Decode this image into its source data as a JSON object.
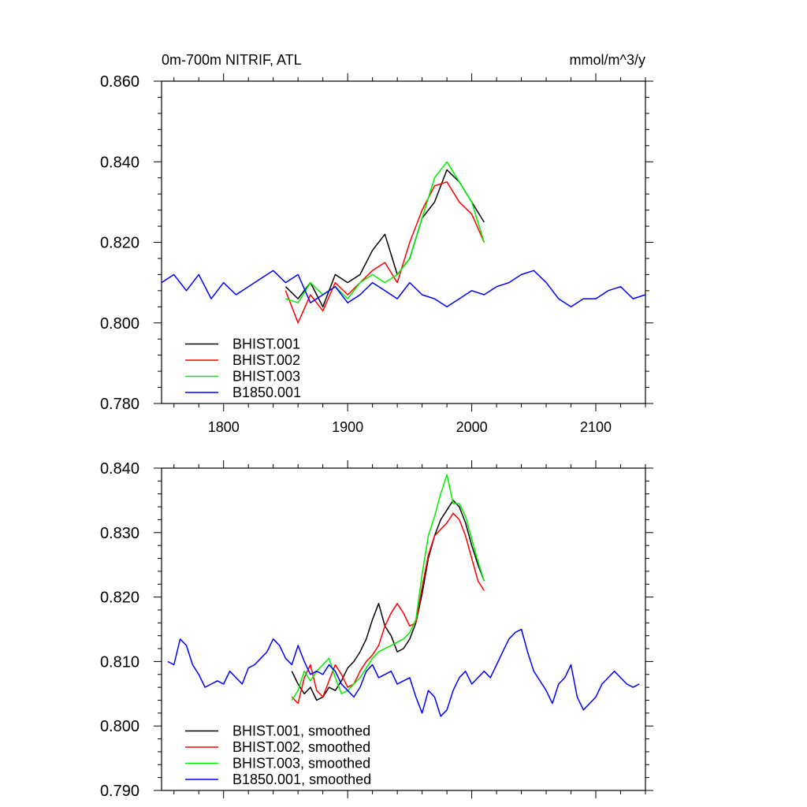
{
  "chart_data": [
    {
      "type": "line",
      "title": "0m-700m NITRIF, ATL",
      "units": "mmol/m^3/y",
      "xlim": [
        1750,
        2140
      ],
      "ylim": [
        0.78,
        0.86
      ],
      "x_ticks": [
        "1800",
        "1900",
        "2000",
        "2100"
      ],
      "y_ticks": [
        "0.780",
        "0.800",
        "0.820",
        "0.840",
        "0.860"
      ],
      "legend_position": "bottom-left",
      "series": [
        {
          "name": "BHIST.001",
          "color": "#000000",
          "x": [
            1850,
            1860,
            1870,
            1880,
            1890,
            1900,
            1910,
            1920,
            1930,
            1940,
            1950,
            1960,
            1970,
            1980,
            1990,
            2000,
            2010
          ],
          "y": [
            0.809,
            0.806,
            0.81,
            0.804,
            0.812,
            0.81,
            0.812,
            0.818,
            0.822,
            0.812,
            0.816,
            0.826,
            0.83,
            0.838,
            0.835,
            0.83,
            0.825
          ]
        },
        {
          "name": "BHIST.002",
          "color": "#ff0000",
          "x": [
            1850,
            1860,
            1870,
            1880,
            1890,
            1900,
            1910,
            1920,
            1930,
            1940,
            1950,
            1960,
            1970,
            1980,
            1990,
            2000,
            2010
          ],
          "y": [
            0.808,
            0.8,
            0.807,
            0.803,
            0.81,
            0.807,
            0.81,
            0.813,
            0.815,
            0.81,
            0.82,
            0.828,
            0.834,
            0.835,
            0.83,
            0.827,
            0.82
          ]
        },
        {
          "name": "BHIST.003",
          "color": "#00ee00",
          "x": [
            1850,
            1860,
            1870,
            1880,
            1890,
            1900,
            1910,
            1920,
            1930,
            1940,
            1950,
            1960,
            1970,
            1980,
            1990,
            2000,
            2010
          ],
          "y": [
            0.806,
            0.805,
            0.81,
            0.807,
            0.809,
            0.806,
            0.81,
            0.812,
            0.81,
            0.812,
            0.816,
            0.826,
            0.836,
            0.84,
            0.835,
            0.83,
            0.82
          ]
        },
        {
          "name": "B1850.001",
          "color": "#0000ff",
          "x": [
            1750,
            1760,
            1770,
            1780,
            1790,
            1800,
            1810,
            1820,
            1830,
            1840,
            1850,
            1860,
            1870,
            1880,
            1890,
            1900,
            1910,
            1920,
            1930,
            1940,
            1950,
            1960,
            1970,
            1980,
            1990,
            2000,
            2010,
            2020,
            2030,
            2040,
            2050,
            2060,
            2070,
            2080,
            2090,
            2100,
            2110,
            2120,
            2130,
            2140
          ],
          "y": [
            0.81,
            0.812,
            0.808,
            0.812,
            0.806,
            0.81,
            0.807,
            0.809,
            0.811,
            0.813,
            0.81,
            0.812,
            0.805,
            0.807,
            0.809,
            0.805,
            0.807,
            0.81,
            0.808,
            0.806,
            0.81,
            0.807,
            0.806,
            0.804,
            0.806,
            0.808,
            0.807,
            0.809,
            0.81,
            0.812,
            0.813,
            0.81,
            0.806,
            0.804,
            0.806,
            0.806,
            0.808,
            0.809,
            0.806,
            0.807
          ]
        }
      ]
    },
    {
      "type": "line",
      "xlim": [
        1750,
        2140
      ],
      "ylim": [
        0.79,
        0.84
      ],
      "x_ticks": [],
      "y_ticks": [
        "0.790",
        "0.800",
        "0.810",
        "0.820",
        "0.830",
        "0.840"
      ],
      "legend_position": "bottom-left",
      "series": [
        {
          "name": "BHIST.001, smoothed",
          "color": "#000000",
          "x": [
            1855,
            1860,
            1865,
            1870,
            1875,
            1880,
            1885,
            1890,
            1895,
            1900,
            1905,
            1910,
            1915,
            1920,
            1925,
            1930,
            1935,
            1940,
            1945,
            1950,
            1955,
            1960,
            1965,
            1970,
            1975,
            1980,
            1985,
            1990,
            1995,
            2000,
            2005,
            2010
          ],
          "y": [
            0.8085,
            0.8065,
            0.805,
            0.806,
            0.804,
            0.8045,
            0.806,
            0.8055,
            0.807,
            0.809,
            0.81,
            0.8115,
            0.8135,
            0.8165,
            0.819,
            0.8155,
            0.814,
            0.8115,
            0.812,
            0.8135,
            0.816,
            0.8205,
            0.826,
            0.8295,
            0.832,
            0.8335,
            0.835,
            0.834,
            0.8315,
            0.828,
            0.825,
            0.8225
          ]
        },
        {
          "name": "BHIST.002, smoothed",
          "color": "#ff0000",
          "x": [
            1855,
            1860,
            1865,
            1870,
            1875,
            1880,
            1885,
            1890,
            1895,
            1900,
            1905,
            1910,
            1915,
            1920,
            1925,
            1930,
            1935,
            1940,
            1945,
            1950,
            1955,
            1960,
            1965,
            1970,
            1975,
            1980,
            1985,
            1990,
            1995,
            2000,
            2005,
            2010
          ],
          "y": [
            0.8045,
            0.8035,
            0.8075,
            0.8095,
            0.8055,
            0.8045,
            0.807,
            0.8095,
            0.808,
            0.806,
            0.8065,
            0.8085,
            0.81,
            0.811,
            0.8125,
            0.8155,
            0.8175,
            0.819,
            0.8175,
            0.8155,
            0.816,
            0.8215,
            0.8265,
            0.8295,
            0.8305,
            0.8315,
            0.833,
            0.832,
            0.8295,
            0.826,
            0.8225,
            0.821
          ]
        },
        {
          "name": "BHIST.003, smoothed",
          "color": "#00ee00",
          "x": [
            1855,
            1860,
            1865,
            1870,
            1875,
            1880,
            1885,
            1890,
            1895,
            1900,
            1905,
            1910,
            1915,
            1920,
            1925,
            1930,
            1935,
            1940,
            1945,
            1950,
            1955,
            1960,
            1965,
            1970,
            1975,
            1980,
            1985,
            1990,
            1995,
            2000,
            2005,
            2010
          ],
          "y": [
            0.804,
            0.8055,
            0.8085,
            0.807,
            0.8085,
            0.8095,
            0.8105,
            0.8075,
            0.805,
            0.8055,
            0.8065,
            0.8075,
            0.809,
            0.8105,
            0.8115,
            0.812,
            0.8125,
            0.813,
            0.8135,
            0.8145,
            0.8165,
            0.8235,
            0.8295,
            0.8325,
            0.836,
            0.839,
            0.8345,
            0.8345,
            0.8325,
            0.829,
            0.8255,
            0.8225
          ]
        },
        {
          "name": "B1850.001, smoothed",
          "color": "#0000ff",
          "x": [
            1755,
            1760,
            1765,
            1770,
            1775,
            1780,
            1785,
            1790,
            1795,
            1800,
            1805,
            1810,
            1815,
            1820,
            1825,
            1830,
            1835,
            1840,
            1845,
            1850,
            1855,
            1860,
            1865,
            1870,
            1875,
            1880,
            1885,
            1890,
            1895,
            1900,
            1905,
            1910,
            1915,
            1920,
            1925,
            1930,
            1935,
            1940,
            1945,
            1950,
            1955,
            1960,
            1965,
            1970,
            1975,
            1980,
            1985,
            1990,
            1995,
            2000,
            2005,
            2010,
            2015,
            2020,
            2025,
            2030,
            2035,
            2040,
            2045,
            2050,
            2055,
            2060,
            2065,
            2070,
            2075,
            2080,
            2085,
            2090,
            2095,
            2100,
            2105,
            2110,
            2115,
            2120,
            2125,
            2130,
            2135
          ],
          "y": [
            0.81,
            0.8095,
            0.8135,
            0.8125,
            0.8095,
            0.808,
            0.806,
            0.8065,
            0.807,
            0.8065,
            0.8085,
            0.8075,
            0.8065,
            0.809,
            0.8095,
            0.8105,
            0.8115,
            0.8135,
            0.8125,
            0.8105,
            0.8095,
            0.8125,
            0.81,
            0.808,
            0.8085,
            0.808,
            0.8095,
            0.8085,
            0.8065,
            0.8055,
            0.8045,
            0.806,
            0.8085,
            0.8095,
            0.8075,
            0.808,
            0.8085,
            0.8065,
            0.807,
            0.8075,
            0.8045,
            0.802,
            0.8055,
            0.8045,
            0.8015,
            0.8025,
            0.8055,
            0.8075,
            0.8085,
            0.8065,
            0.8075,
            0.8085,
            0.8075,
            0.8095,
            0.8115,
            0.8135,
            0.8145,
            0.815,
            0.8115,
            0.8085,
            0.807,
            0.8055,
            0.8035,
            0.8065,
            0.8075,
            0.8095,
            0.8045,
            0.8025,
            0.8035,
            0.8045,
            0.8065,
            0.8075,
            0.8085,
            0.8075,
            0.8065,
            0.806,
            0.8065
          ]
        }
      ]
    }
  ]
}
